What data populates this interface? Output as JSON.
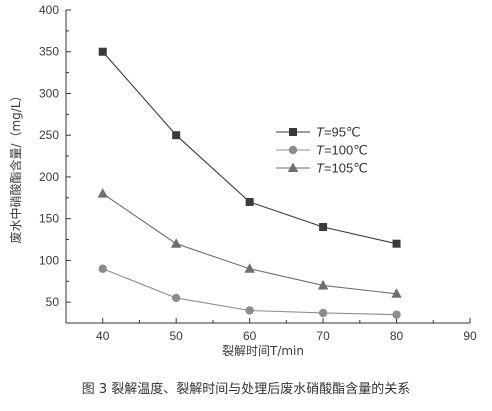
{
  "chart_data": {
    "type": "line",
    "x": [
      40,
      50,
      60,
      70,
      80
    ],
    "xlim": [
      35,
      90
    ],
    "ylim": [
      25,
      400
    ],
    "xticks": [
      40,
      50,
      60,
      70,
      80,
      90
    ],
    "yticks": [
      50,
      100,
      150,
      200,
      250,
      300,
      350,
      400
    ],
    "xlabel": "裂解时间T/min",
    "ylabel": "废水中硝酸酯含量/（mg/L）",
    "legend_position": "upper-right",
    "series": [
      {
        "name": "T=95℃",
        "var": "T",
        "rest": "=95℃",
        "marker": "square",
        "color": "#3a3a3a",
        "values": [
          350,
          250,
          170,
          140,
          120
        ]
      },
      {
        "name": "T=100℃",
        "var": "T",
        "rest": "=100℃",
        "marker": "circle",
        "color": "#8c8c8c",
        "values": [
          90,
          55,
          40,
          37,
          35
        ]
      },
      {
        "name": "T=105℃",
        "var": "T",
        "rest": "=105℃",
        "marker": "triangle",
        "color": "#6e6e6e",
        "values": [
          180,
          120,
          90,
          70,
          60
        ]
      }
    ]
  },
  "caption": "图 3   裂解温度、裂解时间与处理后废水硝酸酯含量的关系"
}
